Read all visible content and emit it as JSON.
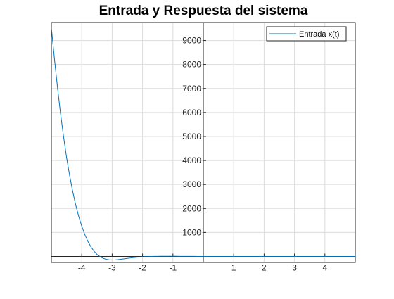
{
  "chart_data": {
    "type": "line",
    "title": "Entrada y Respuesta del sistema",
    "xlabel": "",
    "ylabel": "",
    "xlim": [
      -5,
      5
    ],
    "ylim": [
      -250,
      9750
    ],
    "x_ticks": [
      -4,
      -3,
      -2,
      -1,
      1,
      2,
      3,
      4
    ],
    "x_tick_labels": [
      "-4",
      "-3",
      "-2",
      "-1",
      "1",
      "2",
      "3",
      "4"
    ],
    "y_ticks": [
      1000,
      2000,
      3000,
      4000,
      5000,
      6000,
      7000,
      8000,
      9000
    ],
    "y_tick_labels": [
      "1000",
      "2000",
      "3000",
      "4000",
      "5000",
      "6000",
      "7000",
      "8000",
      "9000"
    ],
    "grid": true,
    "axes_at_origin": true,
    "legend": {
      "position": "top-right",
      "entries": [
        "Entrada x(t)"
      ]
    },
    "series": [
      {
        "name": "Entrada x(t)",
        "color": "#0072BD",
        "x": [
          -5.0,
          -4.9,
          -4.8,
          -4.7,
          -4.6,
          -4.5,
          -4.4,
          -4.3,
          -4.2,
          -4.1,
          -4.0,
          -3.9,
          -3.8,
          -3.7,
          -3.6,
          -3.5,
          -3.4,
          -3.3,
          -3.2,
          -3.1,
          -3.0,
          -2.9,
          -2.8,
          -2.7,
          -2.6,
          -2.5,
          -2.4,
          -2.3,
          -2.2,
          -2.1,
          -2.0,
          -1.9,
          -1.8,
          -1.7,
          -1.6,
          -1.5,
          -1.4,
          -1.3,
          -1.2,
          -1.1,
          -1.0,
          -0.9,
          -0.8,
          -0.7,
          -0.6,
          -0.5,
          -0.4,
          -0.3,
          -0.2,
          -0.1,
          0.0,
          1.0,
          2.0,
          3.0,
          4.0,
          5.0
        ],
        "y": [
          9530,
          8250,
          7060,
          5970,
          5000,
          4130,
          3380,
          2720,
          2150,
          1670,
          1260,
          913,
          630,
          403,
          224,
          88,
          -9,
          -76,
          -117,
          -139,
          -146,
          -142,
          -131,
          -116,
          -99,
          -82,
          -65,
          -50,
          -36,
          -25,
          -16,
          -9,
          -4,
          -0.3,
          2.3,
          4.0,
          5.1,
          5.6,
          5.8,
          5.8,
          5.5,
          5.0,
          4.4,
          3.8,
          3.1,
          2.4,
          1.8,
          1.2,
          0.7,
          0.3,
          0,
          0,
          0,
          0,
          0,
          0
        ]
      }
    ]
  }
}
